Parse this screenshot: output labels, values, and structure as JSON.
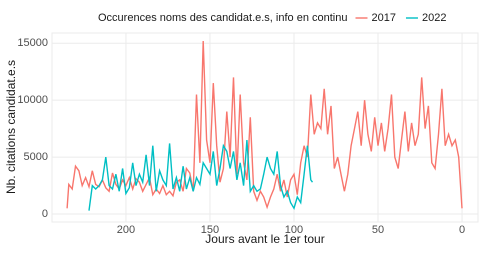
{
  "chart_data": {
    "type": "line",
    "legend_title": "Occurences noms des candidat.e.s, info en continu",
    "legend_position": "top",
    "x_label": "Jours avant le 1er tour",
    "y_label": "Nb. citations candidat.e.s",
    "xlim": [
      244,
      -9.5
    ],
    "xticks": [
      200,
      150,
      100,
      50,
      0
    ],
    "ylim": [
      -700,
      15900
    ],
    "yticks": [
      0,
      5000,
      10000,
      15000
    ],
    "grid": true,
    "series": [
      {
        "name": "2017",
        "color": "#F8766D",
        "x": [
          235,
          234,
          232,
          230,
          228,
          226,
          224,
          222,
          220,
          218,
          216,
          214,
          212,
          210,
          208,
          206,
          204,
          202,
          200,
          198,
          196,
          194,
          192,
          190,
          188,
          186,
          184,
          182,
          180,
          178,
          176,
          174,
          172,
          170,
          168,
          166,
          164,
          162,
          160,
          158,
          156,
          154,
          152,
          150,
          148,
          146,
          144,
          142,
          140,
          138,
          136,
          134,
          132,
          130,
          128,
          126,
          124,
          122,
          120,
          118,
          116,
          114,
          112,
          110,
          108,
          106,
          104,
          102,
          100,
          98,
          96,
          94,
          92,
          90,
          88,
          86,
          84,
          82,
          80,
          78,
          76,
          74,
          72,
          70,
          68,
          66,
          64,
          62,
          60,
          58,
          56,
          54,
          52,
          50,
          48,
          46,
          44,
          42,
          40,
          38,
          36,
          34,
          32,
          30,
          28,
          26,
          24,
          22,
          20,
          18,
          16,
          14,
          12,
          10,
          8,
          6,
          4,
          2,
          0
        ],
        "values": [
          500,
          2600,
          2200,
          4200,
          3800,
          2500,
          3200,
          2400,
          3800,
          2600,
          2400,
          3000,
          2300,
          2000,
          3600,
          2600,
          2200,
          3000,
          2500,
          3200,
          2200,
          3100,
          2800,
          2000,
          2600,
          3200,
          1700,
          2200,
          1800,
          2500,
          1700,
          2000,
          1600,
          2800,
          3000,
          2000,
          4000,
          3600,
          2000,
          10500,
          4500,
          15200,
          6500,
          4500,
          11500,
          6000,
          2800,
          4000,
          9000,
          5000,
          12000,
          3500,
          10500,
          4500,
          3000,
          8500,
          2000,
          1200,
          2000,
          1500,
          600,
          1500,
          2200,
          3500,
          2000,
          3000,
          1500,
          3000,
          3500,
          1700,
          4500,
          6000,
          5000,
          10500,
          7000,
          8000,
          7500,
          11000,
          7000,
          9500,
          4000,
          5000,
          3500,
          2000,
          3500,
          6000,
          7500,
          9000,
          6000,
          10000,
          7000,
          5500,
          8500,
          6000,
          8000,
          5500,
          7500,
          10500,
          5000,
          4000,
          6500,
          9000,
          5500,
          8000,
          6000,
          7000,
          12000,
          7500,
          9500,
          4500,
          4000,
          7000,
          11000,
          6000,
          7000,
          6000,
          6500,
          5000,
          500
        ]
      },
      {
        "name": "2022",
        "color": "#00BFC4",
        "x": [
          222,
          220,
          218,
          216,
          214,
          212,
          210,
          208,
          206,
          204,
          202,
          200,
          198,
          196,
          194,
          192,
          190,
          188,
          186,
          184,
          182,
          180,
          178,
          176,
          174,
          172,
          170,
          168,
          166,
          164,
          162,
          160,
          158,
          156,
          154,
          152,
          150,
          148,
          146,
          144,
          142,
          140,
          138,
          136,
          134,
          132,
          130,
          128,
          126,
          124,
          122,
          120,
          118,
          116,
          114,
          112,
          110,
          108,
          106,
          104,
          102,
          100,
          98,
          96,
          94,
          92,
          90,
          89
        ],
        "values": [
          300,
          2500,
          2200,
          2500,
          3000,
          5000,
          2500,
          2200,
          3500,
          2000,
          4000,
          1800,
          2300,
          4500,
          2500,
          3500,
          2800,
          5200,
          2500,
          6000,
          2000,
          3800,
          3000,
          2500,
          6200,
          2200,
          3200,
          2000,
          4200,
          2200,
          3200,
          2000,
          3200,
          2600,
          4500,
          4000,
          3500,
          5500,
          2500,
          4000,
          6000,
          5500,
          4000,
          5500,
          3000,
          4500,
          2500,
          6500,
          2000,
          2500,
          2000,
          2200,
          3500,
          5000,
          4000,
          3500,
          5500,
          2500,
          1500,
          2000,
          1000,
          500,
          1500,
          1000,
          3500,
          6000,
          3000,
          2800
        ]
      }
    ]
  }
}
